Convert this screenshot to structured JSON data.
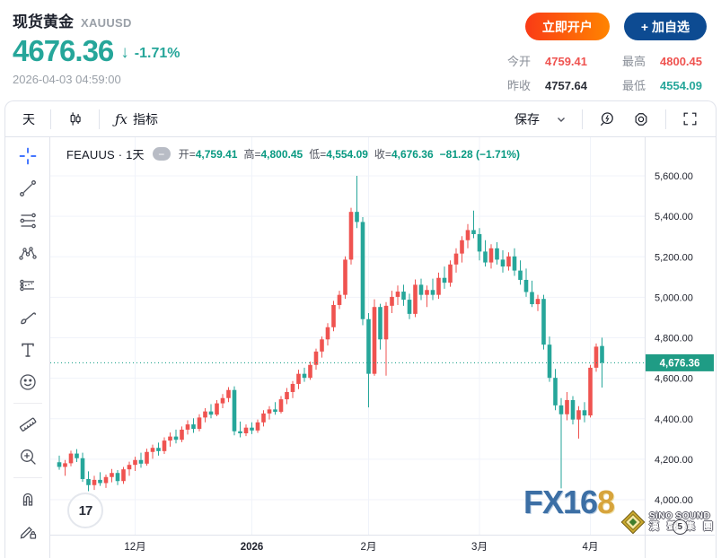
{
  "header": {
    "title": "现货黄金",
    "symbol": "XAUUSD",
    "price": "4676.36",
    "arrow": "↓",
    "change_percent": "-1.71%",
    "timestamp": "2026-04-03 04:59:00",
    "buttons": {
      "open_account": "立即开户",
      "add_watchlist": "+ 加自选"
    },
    "stats": [
      {
        "label": "今开",
        "value": "4759.41"
      },
      {
        "label": "最高",
        "value": "4800.45"
      },
      {
        "label": "昨收",
        "value": "4757.64"
      },
      {
        "label": "最低",
        "value": "4554.09"
      }
    ]
  },
  "toolbar": {
    "interval": "天",
    "fx_glyph": "ƒx",
    "indicators": "指标",
    "save": "保存",
    "chevron": "⌄",
    "icons": [
      "candle-style-icon",
      "indicators-fx-icon",
      "quick-search-icon",
      "settings-icon",
      "fullscreen-icon"
    ]
  },
  "sidebar": {
    "tools": [
      "crosshair",
      "trend-line",
      "fib-retracement",
      "xabcd-pattern",
      "forecast",
      "brush",
      "text",
      "emoji",
      "measure-ruler",
      "zoom-in",
      "magnet",
      "drawing-lock"
    ]
  },
  "chart": {
    "legend": {
      "title": "FEAUUS · 1天",
      "collapse": "−",
      "open_label": "开=",
      "open": "4,759.41",
      "high_label": "高=",
      "high": "4,800.45",
      "low_label": "低=",
      "low": "4,554.09",
      "close_label": "收=",
      "close": "4,676.36",
      "change": "−81.28 (−1.71%)"
    },
    "price_line": {
      "price": 4676.36,
      "label": "4,676.36",
      "color": "#1f9c85"
    },
    "colors": {
      "up": "#ef5350",
      "down": "#26a69a",
      "grid": "#f0f3fa",
      "axis_text": "#20232e",
      "border": "#e0e3eb",
      "teal_text": "#089981"
    }
  },
  "watermarks": {
    "tradingview": "17",
    "fx168_blue": "FX16",
    "fx168_gold": "8",
    "sino_line1": "SiNO SOUND",
    "sino_line2": "漢 聲 集 團",
    "sino_badge": "5"
  },
  "chart_data": {
    "type": "candlestick",
    "title": "现货黄金 XAUUSD (FEAUUS) 日线",
    "interval": "1天",
    "convention": "red = up, green = down (CN)",
    "last": {
      "open": 4759.41,
      "high": 4800.45,
      "low": 4554.09,
      "close": 4676.36,
      "change": -81.28,
      "change_pct": -1.71
    },
    "y_ticks": [
      {
        "price": 5600,
        "label": "5,600.00"
      },
      {
        "price": 5400,
        "label": "5,400.00"
      },
      {
        "price": 5200,
        "label": "5,200.00"
      },
      {
        "price": 5000,
        "label": "5,000.00"
      },
      {
        "price": 4800,
        "label": "4,800.00"
      },
      {
        "price": 4600,
        "label": "4,600.00"
      },
      {
        "price": 4400,
        "label": "4,400.00"
      },
      {
        "price": 4200,
        "label": "4,200.00"
      },
      {
        "price": 4000,
        "label": "4,000.00"
      }
    ],
    "x_ticks": [
      {
        "label": "12月",
        "index": 13,
        "bold": false
      },
      {
        "label": "2026",
        "index": 33,
        "bold": true
      },
      {
        "label": "2月",
        "index": 53,
        "bold": false
      },
      {
        "label": "3月",
        "index": 72,
        "bold": false
      },
      {
        "label": "4月",
        "index": 91,
        "bold": false
      }
    ],
    "y_range_visible": [
      3850,
      5760
    ],
    "candles": [
      [
        4185,
        4218,
        4148,
        4162
      ],
      [
        4162,
        4196,
        4118,
        4180
      ],
      [
        4180,
        4242,
        4165,
        4228
      ],
      [
        4228,
        4250,
        4186,
        4205
      ],
      [
        4205,
        4232,
        4088,
        4102
      ],
      [
        4102,
        4140,
        4042,
        4072
      ],
      [
        4072,
        4118,
        4048,
        4098
      ],
      [
        4098,
        4136,
        4068,
        4082
      ],
      [
        4082,
        4124,
        4058,
        4112
      ],
      [
        4112,
        4152,
        4086,
        4132
      ],
      [
        4132,
        4146,
        4072,
        4092
      ],
      [
        4092,
        4162,
        4078,
        4150
      ],
      [
        4150,
        4188,
        4118,
        4172
      ],
      [
        4172,
        4212,
        4142,
        4196
      ],
      [
        4196,
        4232,
        4158,
        4178
      ],
      [
        4178,
        4252,
        4168,
        4236
      ],
      [
        4236,
        4272,
        4202,
        4256
      ],
      [
        4256,
        4282,
        4218,
        4240
      ],
      [
        4240,
        4308,
        4226,
        4292
      ],
      [
        4292,
        4332,
        4262,
        4312
      ],
      [
        4312,
        4346,
        4278,
        4296
      ],
      [
        4296,
        4362,
        4284,
        4346
      ],
      [
        4346,
        4392,
        4322,
        4372
      ],
      [
        4372,
        4402,
        4330,
        4350
      ],
      [
        4350,
        4422,
        4338,
        4406
      ],
      [
        4406,
        4452,
        4382,
        4436
      ],
      [
        4436,
        4472,
        4402,
        4420
      ],
      [
        4420,
        4492,
        4412,
        4476
      ],
      [
        4476,
        4522,
        4452,
        4502
      ],
      [
        4502,
        4556,
        4482,
        4542
      ],
      [
        4542,
        4560,
        4318,
        4338
      ],
      [
        4338,
        4386,
        4308,
        4328
      ],
      [
        4328,
        4372,
        4314,
        4356
      ],
      [
        4356,
        4382,
        4324,
        4342
      ],
      [
        4342,
        4396,
        4330,
        4382
      ],
      [
        4382,
        4442,
        4362,
        4426
      ],
      [
        4426,
        4462,
        4396,
        4446
      ],
      [
        4446,
        4482,
        4420,
        4434
      ],
      [
        4434,
        4512,
        4426,
        4496
      ],
      [
        4496,
        4552,
        4472,
        4532
      ],
      [
        4532,
        4586,
        4502,
        4572
      ],
      [
        4572,
        4642,
        4546,
        4622
      ],
      [
        4622,
        4652,
        4582,
        4602
      ],
      [
        4602,
        4682,
        4592,
        4666
      ],
      [
        4666,
        4746,
        4642,
        4732
      ],
      [
        4732,
        4806,
        4702,
        4792
      ],
      [
        4792,
        4872,
        4762,
        4852
      ],
      [
        4852,
        4982,
        4832,
        4962
      ],
      [
        4962,
        5032,
        4942,
        5012
      ],
      [
        5012,
        5202,
        4992,
        5186
      ],
      [
        5186,
        5442,
        5162,
        5422
      ],
      [
        5422,
        5600,
        5342,
        5372
      ],
      [
        5372,
        5396,
        4862,
        4892
      ],
      [
        4892,
        4922,
        4456,
        4622
      ],
      [
        4622,
        4990,
        4612,
        4952
      ],
      [
        4952,
        4968,
        4742,
        4792
      ],
      [
        4792,
        4976,
        4613,
        4958
      ],
      [
        4958,
        5032,
        4922,
        5002
      ],
      [
        5002,
        5058,
        4962,
        5028
      ],
      [
        5028,
        5062,
        4958,
        4988
      ],
      [
        4988,
        5018,
        4892,
        4918
      ],
      [
        4918,
        5088,
        4902,
        5062
      ],
      [
        5062,
        5092,
        4986,
        5012
      ],
      [
        5012,
        5058,
        4952,
        5036
      ],
      [
        5036,
        5092,
        4986,
        5012
      ],
      [
        5012,
        5122,
        4992,
        5096
      ],
      [
        5096,
        5152,
        5042,
        5072
      ],
      [
        5072,
        5182,
        5052,
        5162
      ],
      [
        5162,
        5242,
        5122,
        5216
      ],
      [
        5216,
        5302,
        5172,
        5282
      ],
      [
        5282,
        5362,
        5242,
        5332
      ],
      [
        5332,
        5428,
        5292,
        5312
      ],
      [
        5312,
        5342,
        5182,
        5226
      ],
      [
        5226,
        5282,
        5152,
        5172
      ],
      [
        5172,
        5262,
        5142,
        5242
      ],
      [
        5242,
        5272,
        5162,
        5186
      ],
      [
        5186,
        5232,
        5122,
        5152
      ],
      [
        5152,
        5222,
        5132,
        5202
      ],
      [
        5202,
        5242,
        5106,
        5132
      ],
      [
        5132,
        5182,
        5062,
        5086
      ],
      [
        5086,
        5142,
        5002,
        5026
      ],
      [
        5026,
        5082,
        4952,
        4966
      ],
      [
        4966,
        5012,
        4932,
        4992
      ],
      [
        4992,
        5012,
        4742,
        4766
      ],
      [
        4766,
        4806,
        4582,
        4602
      ],
      [
        4602,
        4646,
        4442,
        4466
      ],
      [
        4466,
        4502,
        4056,
        4422
      ],
      [
        4422,
        4532,
        4392,
        4492
      ],
      [
        4492,
        4512,
        4372,
        4396
      ],
      [
        4396,
        4462,
        4302,
        4442
      ],
      [
        4442,
        4482,
        4382,
        4416
      ],
      [
        4416,
        4666,
        4406,
        4652
      ],
      [
        4652,
        4772,
        4632,
        4756
      ],
      [
        4759.41,
        4800.45,
        4554.09,
        4676.36
      ]
    ]
  }
}
